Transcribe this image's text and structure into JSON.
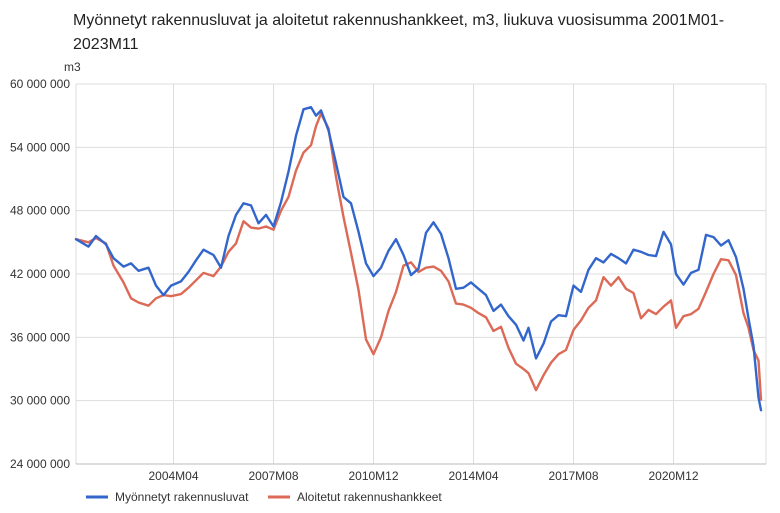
{
  "chart_data": {
    "type": "line",
    "title": "Myönnetyt rakennusluvat ja aloitetut rakennushankkeet, m3, liukuva vuosisumma 2001M01-2023M11",
    "ylabel": "m3",
    "xlabel": "",
    "ylim": [
      24000000,
      60000000
    ],
    "y_ticks": [
      {
        "value": 24000000,
        "label": "24 000 000"
      },
      {
        "value": 30000000,
        "label": "30 000 000"
      },
      {
        "value": 36000000,
        "label": "36 000 000"
      },
      {
        "value": 42000000,
        "label": "42 000 000"
      },
      {
        "value": 48000000,
        "label": "48 000 000"
      },
      {
        "value": 54000000,
        "label": "54 000 000"
      },
      {
        "value": 60000000,
        "label": "60 000 000"
      }
    ],
    "x_range": [
      "2001M01",
      "2023M11"
    ],
    "x_ticks": [
      "2004M04",
      "2007M08",
      "2010M12",
      "2014M04",
      "2017M08",
      "2020M12"
    ],
    "grid": true,
    "legend": "bottom",
    "series": [
      {
        "name": "Myönnetyt rakennusluvat",
        "color": "#3366cc",
        "points": [
          [
            "2001M01",
            45300000
          ],
          [
            "2001M06",
            44600000
          ],
          [
            "2001M09",
            45600000
          ],
          [
            "2002M01",
            44800000
          ],
          [
            "2002M04",
            43500000
          ],
          [
            "2002M08",
            42700000
          ],
          [
            "2002M11",
            43000000
          ],
          [
            "2003M02",
            42300000
          ],
          [
            "2003M06",
            42600000
          ],
          [
            "2003M09",
            40900000
          ],
          [
            "2003M12",
            40000000
          ],
          [
            "2004M03",
            40900000
          ],
          [
            "2004M07",
            41300000
          ],
          [
            "2004M10",
            42200000
          ],
          [
            "2005M01",
            43300000
          ],
          [
            "2005M04",
            44300000
          ],
          [
            "2005M08",
            43800000
          ],
          [
            "2005M11",
            42600000
          ],
          [
            "2006M02",
            45600000
          ],
          [
            "2006M05",
            47600000
          ],
          [
            "2006M08",
            48700000
          ],
          [
            "2006M11",
            48500000
          ],
          [
            "2007M02",
            46800000
          ],
          [
            "2007M05",
            47600000
          ],
          [
            "2007M08",
            46500000
          ],
          [
            "2007M11",
            48800000
          ],
          [
            "2008M02",
            51700000
          ],
          [
            "2008M05",
            55100000
          ],
          [
            "2008M08",
            57600000
          ],
          [
            "2008M11",
            57800000
          ],
          [
            "2009M01",
            57000000
          ],
          [
            "2009M03",
            57500000
          ],
          [
            "2009M06",
            55600000
          ],
          [
            "2009M09",
            52500000
          ],
          [
            "2009M12",
            49300000
          ],
          [
            "2010M03",
            48700000
          ],
          [
            "2010M06",
            46000000
          ],
          [
            "2010M09",
            43000000
          ],
          [
            "2010M12",
            41800000
          ],
          [
            "2011M03",
            42600000
          ],
          [
            "2011M06",
            44200000
          ],
          [
            "2011M09",
            45300000
          ],
          [
            "2011M12",
            43800000
          ],
          [
            "2012M03",
            41900000
          ],
          [
            "2012M06",
            42500000
          ],
          [
            "2012M09",
            45900000
          ],
          [
            "2012M12",
            46900000
          ],
          [
            "2013M03",
            45800000
          ],
          [
            "2013M06",
            43500000
          ],
          [
            "2013M09",
            40600000
          ],
          [
            "2013M12",
            40700000
          ],
          [
            "2014M03",
            41200000
          ],
          [
            "2014M06",
            40600000
          ],
          [
            "2014M09",
            40000000
          ],
          [
            "2014M12",
            38500000
          ],
          [
            "2015M03",
            39100000
          ],
          [
            "2015M06",
            38000000
          ],
          [
            "2015M09",
            37200000
          ],
          [
            "2015M12",
            35700000
          ],
          [
            "2016M02",
            36900000
          ],
          [
            "2016M05",
            34000000
          ],
          [
            "2016M08",
            35400000
          ],
          [
            "2016M11",
            37500000
          ],
          [
            "2017M02",
            38100000
          ],
          [
            "2017M05",
            38000000
          ],
          [
            "2017M08",
            40900000
          ],
          [
            "2017M11",
            40300000
          ],
          [
            "2018M02",
            42400000
          ],
          [
            "2018M05",
            43500000
          ],
          [
            "2018M08",
            43100000
          ],
          [
            "2018M11",
            43900000
          ],
          [
            "2019M02",
            43500000
          ],
          [
            "2019M05",
            43000000
          ],
          [
            "2019M08",
            44300000
          ],
          [
            "2019M11",
            44100000
          ],
          [
            "2020M02",
            43800000
          ],
          [
            "2020M05",
            43700000
          ],
          [
            "2020M08",
            46000000
          ],
          [
            "2020M11",
            44800000
          ],
          [
            "2021M01",
            42000000
          ],
          [
            "2021M04",
            41000000
          ],
          [
            "2021M07",
            42100000
          ],
          [
            "2021M10",
            42400000
          ],
          [
            "2022M01",
            45700000
          ],
          [
            "2022M04",
            45500000
          ],
          [
            "2022M07",
            44700000
          ],
          [
            "2022M10",
            45200000
          ],
          [
            "2023M01",
            43600000
          ],
          [
            "2023M04",
            40600000
          ],
          [
            "2023M06",
            37800000
          ],
          [
            "2023M08",
            35200000
          ],
          [
            "2023M10",
            30300000
          ],
          [
            "2023M11",
            29100000
          ]
        ]
      },
      {
        "name": "Aloitetut rakennushankkeet",
        "color": "#dc6a57",
        "points": [
          [
            "2001M01",
            45300000
          ],
          [
            "2001M06",
            45000000
          ],
          [
            "2001M09",
            45400000
          ],
          [
            "2002M01",
            44900000
          ],
          [
            "2002M04",
            42800000
          ],
          [
            "2002M08",
            41200000
          ],
          [
            "2002M11",
            39700000
          ],
          [
            "2003M02",
            39300000
          ],
          [
            "2003M06",
            39000000
          ],
          [
            "2003M09",
            39700000
          ],
          [
            "2003M12",
            40000000
          ],
          [
            "2004M03",
            39900000
          ],
          [
            "2004M07",
            40100000
          ],
          [
            "2004M10",
            40700000
          ],
          [
            "2005M01",
            41400000
          ],
          [
            "2005M04",
            42100000
          ],
          [
            "2005M08",
            41800000
          ],
          [
            "2005M11",
            42700000
          ],
          [
            "2006M02",
            44100000
          ],
          [
            "2006M05",
            44900000
          ],
          [
            "2006M08",
            47000000
          ],
          [
            "2006M11",
            46400000
          ],
          [
            "2007M02",
            46300000
          ],
          [
            "2007M05",
            46500000
          ],
          [
            "2007M08",
            46200000
          ],
          [
            "2007M11",
            48000000
          ],
          [
            "2008M02",
            49300000
          ],
          [
            "2008M05",
            51800000
          ],
          [
            "2008M08",
            53500000
          ],
          [
            "2008M11",
            54200000
          ],
          [
            "2009M01",
            56000000
          ],
          [
            "2009M03",
            57200000
          ],
          [
            "2009M06",
            55800000
          ],
          [
            "2009M09",
            51200000
          ],
          [
            "2009M12",
            47400000
          ],
          [
            "2010M03",
            44000000
          ],
          [
            "2010M06",
            40500000
          ],
          [
            "2010M09",
            35800000
          ],
          [
            "2010M12",
            34400000
          ],
          [
            "2011M03",
            36000000
          ],
          [
            "2011M06",
            38500000
          ],
          [
            "2011M09",
            40300000
          ],
          [
            "2011M12",
            42800000
          ],
          [
            "2012M03",
            43100000
          ],
          [
            "2012M06",
            42200000
          ],
          [
            "2012M09",
            42600000
          ],
          [
            "2012M12",
            42700000
          ],
          [
            "2013M03",
            42300000
          ],
          [
            "2013M06",
            41300000
          ],
          [
            "2013M09",
            39200000
          ],
          [
            "2013M12",
            39100000
          ],
          [
            "2014M03",
            38800000
          ],
          [
            "2014M06",
            38300000
          ],
          [
            "2014M09",
            37900000
          ],
          [
            "2014M12",
            36600000
          ],
          [
            "2015M03",
            37000000
          ],
          [
            "2015M06",
            35000000
          ],
          [
            "2015M09",
            33500000
          ],
          [
            "2015M12",
            33000000
          ],
          [
            "2016M02",
            32600000
          ],
          [
            "2016M05",
            31000000
          ],
          [
            "2016M08",
            32400000
          ],
          [
            "2016M11",
            33600000
          ],
          [
            "2017M02",
            34400000
          ],
          [
            "2017M05",
            34800000
          ],
          [
            "2017M08",
            36700000
          ],
          [
            "2017M11",
            37600000
          ],
          [
            "2018M02",
            38800000
          ],
          [
            "2018M05",
            39500000
          ],
          [
            "2018M08",
            41700000
          ],
          [
            "2018M11",
            40900000
          ],
          [
            "2019M02",
            41700000
          ],
          [
            "2019M05",
            40600000
          ],
          [
            "2019M08",
            40200000
          ],
          [
            "2019M11",
            37800000
          ],
          [
            "2020M02",
            38600000
          ],
          [
            "2020M05",
            38200000
          ],
          [
            "2020M08",
            38900000
          ],
          [
            "2020M11",
            39500000
          ],
          [
            "2021M01",
            36900000
          ],
          [
            "2021M04",
            38000000
          ],
          [
            "2021M07",
            38200000
          ],
          [
            "2021M10",
            38700000
          ],
          [
            "2022M01",
            40300000
          ],
          [
            "2022M04",
            42000000
          ],
          [
            "2022M07",
            43400000
          ],
          [
            "2022M10",
            43300000
          ],
          [
            "2023M01",
            41900000
          ],
          [
            "2023M04",
            38300000
          ],
          [
            "2023M06",
            36900000
          ],
          [
            "2023M08",
            34800000
          ],
          [
            "2023M10",
            33800000
          ],
          [
            "2023M11",
            30100000
          ]
        ]
      }
    ]
  }
}
